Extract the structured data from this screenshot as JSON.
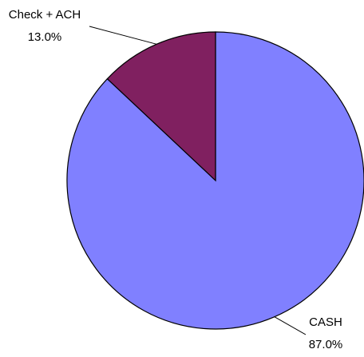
{
  "chart_data": {
    "type": "pie",
    "categories": [
      "CASH",
      "Check + ACH"
    ],
    "values": [
      87,
      13
    ],
    "value_labels": [
      "87.0%",
      "13.0%"
    ],
    "colors": [
      "#8080ff",
      "#802060"
    ]
  }
}
